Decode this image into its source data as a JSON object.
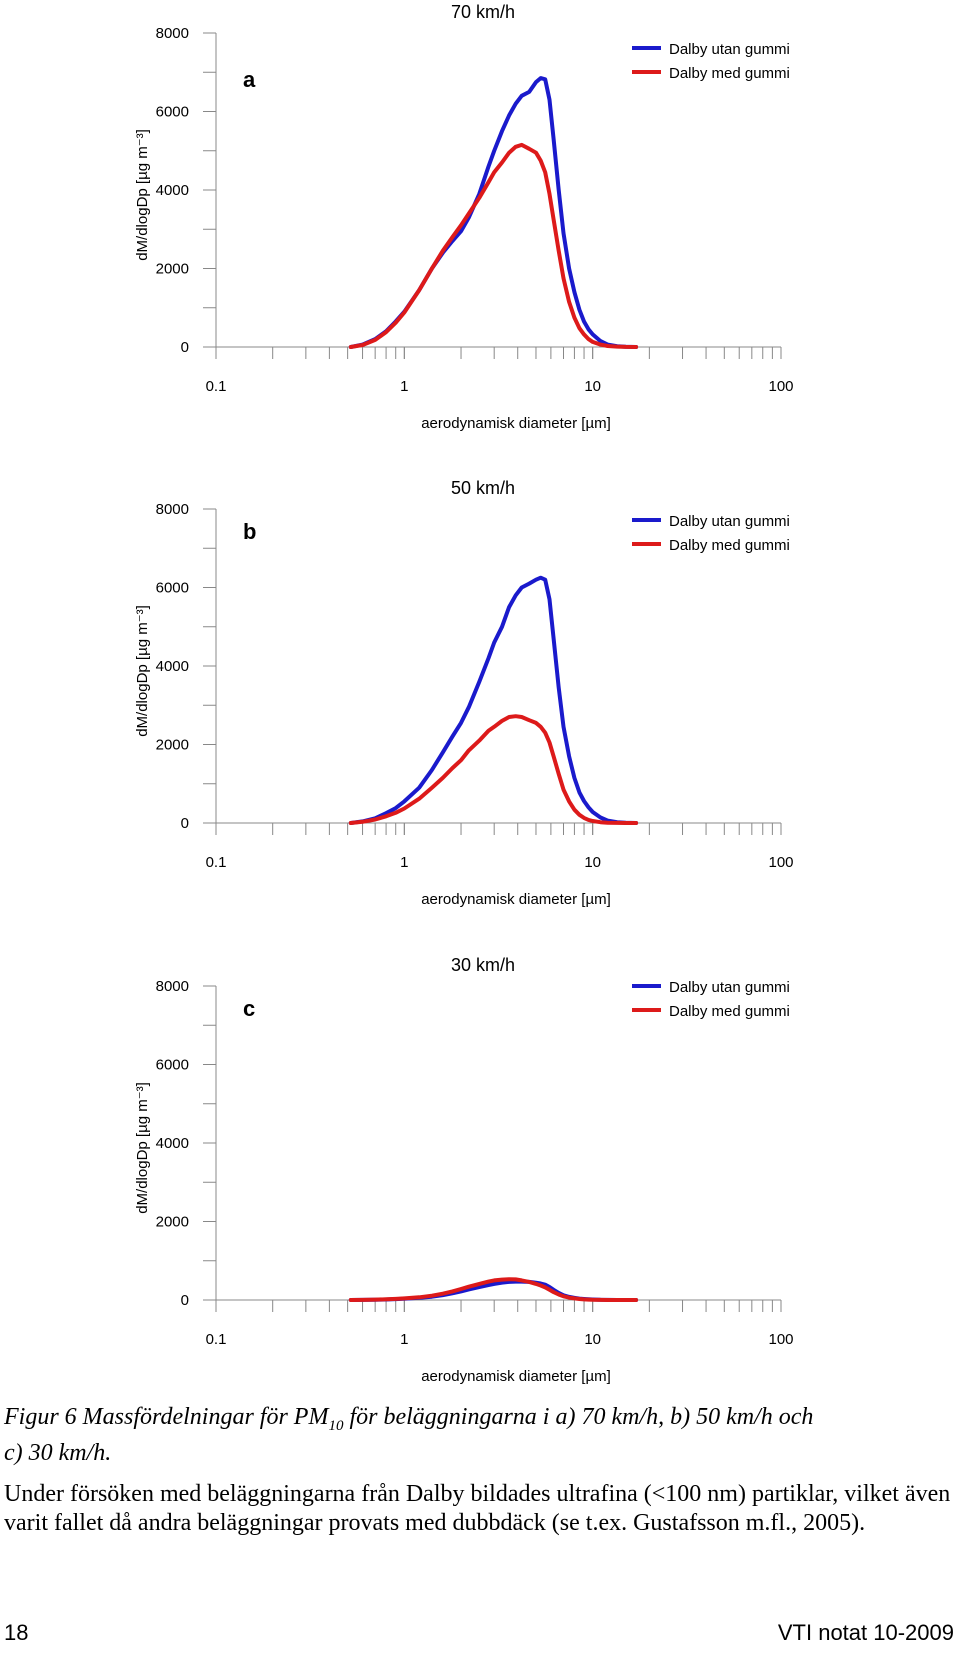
{
  "chart_data": [
    {
      "type": "line",
      "panel_letter": "a",
      "title": "70 km/h",
      "xlabel": "aerodynamisk diameter [µm]",
      "ylabel": "dM/dlogDp [µg m⁻³]",
      "x_scale": "log",
      "xlim": [
        0.1,
        100
      ],
      "ylim": [
        0,
        8000
      ],
      "xticks": [
        "0.1",
        "1",
        "10",
        "100"
      ],
      "yticks": [
        "0",
        "2000",
        "4000",
        "6000",
        "8000"
      ],
      "legend_position": "top-right",
      "series": [
        {
          "name": "Dalby utan gummi",
          "color": "#1a1acc",
          "x": [
            0.52,
            0.6,
            0.7,
            0.8,
            0.9,
            1.0,
            1.2,
            1.4,
            1.6,
            1.8,
            2.0,
            2.2,
            2.5,
            2.8,
            3.0,
            3.3,
            3.6,
            3.9,
            4.2,
            4.6,
            5.0,
            5.3,
            5.6,
            5.9,
            6.2,
            6.6,
            7.0,
            7.5,
            8.0,
            8.5,
            9.0,
            9.5,
            10.0,
            11.0,
            12.0,
            13.5,
            15.0,
            17.0
          ],
          "y": [
            0,
            60,
            200,
            400,
            650,
            900,
            1450,
            2000,
            2400,
            2700,
            2950,
            3300,
            3900,
            4600,
            5000,
            5500,
            5900,
            6200,
            6400,
            6500,
            6750,
            6850,
            6820,
            6300,
            5300,
            4000,
            2900,
            2000,
            1400,
            950,
            650,
            450,
            320,
            150,
            60,
            20,
            5,
            0
          ]
        },
        {
          "name": "Dalby med gummi",
          "color": "#dd1a1a",
          "x": [
            0.52,
            0.6,
            0.7,
            0.8,
            0.9,
            1.0,
            1.2,
            1.4,
            1.6,
            1.8,
            2.0,
            2.2,
            2.5,
            2.8,
            3.0,
            3.3,
            3.6,
            3.9,
            4.2,
            4.6,
            5.0,
            5.3,
            5.6,
            5.9,
            6.2,
            6.6,
            7.0,
            7.5,
            8.0,
            8.5,
            9.0,
            9.5,
            10.0,
            11.0,
            12.0,
            13.5,
            15.0,
            17.0
          ],
          "y": [
            0,
            50,
            180,
            380,
            620,
            880,
            1450,
            2000,
            2450,
            2800,
            3100,
            3400,
            3800,
            4200,
            4450,
            4700,
            4950,
            5100,
            5150,
            5050,
            4950,
            4750,
            4450,
            3900,
            3250,
            2450,
            1750,
            1150,
            750,
            480,
            320,
            200,
            130,
            60,
            25,
            10,
            3,
            0
          ]
        }
      ]
    },
    {
      "type": "line",
      "panel_letter": "b",
      "title": "50 km/h",
      "xlabel": "aerodynamisk diameter [µm]",
      "ylabel": "dM/dlogDp [µg m⁻³]",
      "x_scale": "log",
      "xlim": [
        0.1,
        100
      ],
      "ylim": [
        0,
        8000
      ],
      "xticks": [
        "0.1",
        "1",
        "10",
        "100"
      ],
      "yticks": [
        "0",
        "2000",
        "4000",
        "6000",
        "8000"
      ],
      "legend_position": "top-right",
      "series": [
        {
          "name": "Dalby utan gummi",
          "color": "#1a1acc",
          "x": [
            0.52,
            0.6,
            0.7,
            0.8,
            0.9,
            1.0,
            1.2,
            1.4,
            1.6,
            1.8,
            2.0,
            2.2,
            2.5,
            2.8,
            3.0,
            3.3,
            3.6,
            3.9,
            4.2,
            4.6,
            5.0,
            5.3,
            5.6,
            5.9,
            6.2,
            6.6,
            7.0,
            7.5,
            8.0,
            8.5,
            9.0,
            9.5,
            10.0,
            11.0,
            12.0,
            13.5,
            15.0,
            17.0
          ],
          "y": [
            0,
            40,
            120,
            250,
            380,
            550,
            900,
            1350,
            1800,
            2200,
            2550,
            2950,
            3600,
            4200,
            4600,
            5000,
            5500,
            5800,
            6000,
            6100,
            6200,
            6250,
            6200,
            5700,
            4700,
            3450,
            2450,
            1700,
            1150,
            780,
            560,
            400,
            280,
            140,
            60,
            20,
            5,
            0
          ]
        },
        {
          "name": "Dalby med gummi",
          "color": "#dd1a1a",
          "x": [
            0.52,
            0.6,
            0.7,
            0.8,
            0.9,
            1.0,
            1.2,
            1.4,
            1.6,
            1.8,
            2.0,
            2.2,
            2.5,
            2.8,
            3.0,
            3.3,
            3.6,
            3.9,
            4.2,
            4.6,
            5.0,
            5.3,
            5.6,
            5.9,
            6.2,
            6.6,
            7.0,
            7.5,
            8.0,
            8.5,
            9.0,
            9.5,
            10.0,
            11.0,
            12.0,
            13.5,
            15.0,
            17.0
          ],
          "y": [
            0,
            30,
            90,
            170,
            260,
            370,
            620,
            900,
            1150,
            1400,
            1600,
            1850,
            2100,
            2350,
            2450,
            2600,
            2700,
            2720,
            2700,
            2620,
            2550,
            2450,
            2300,
            2050,
            1700,
            1250,
            850,
            550,
            340,
            210,
            130,
            80,
            50,
            20,
            8,
            3,
            1,
            0
          ]
        }
      ]
    },
    {
      "type": "line",
      "panel_letter": "c",
      "title": "30 km/h",
      "xlabel": "aerodynamisk diameter [µm]",
      "ylabel": "dM/dlogDp [µg m⁻³]",
      "x_scale": "log",
      "xlim": [
        0.1,
        100
      ],
      "ylim": [
        0,
        8000
      ],
      "xticks": [
        "0.1",
        "1",
        "10",
        "100"
      ],
      "yticks": [
        "0",
        "2000",
        "4000",
        "6000",
        "8000"
      ],
      "legend_position": "top-right",
      "series": [
        {
          "name": "Dalby utan gummi",
          "color": "#1a1acc",
          "x": [
            0.52,
            0.6,
            0.7,
            0.8,
            0.9,
            1.0,
            1.2,
            1.4,
            1.6,
            1.8,
            2.0,
            2.2,
            2.5,
            2.8,
            3.0,
            3.3,
            3.6,
            3.9,
            4.2,
            4.6,
            5.0,
            5.3,
            5.6,
            5.9,
            6.2,
            6.6,
            7.0,
            7.5,
            8.0,
            8.5,
            9.0,
            9.5,
            10.0,
            11.0,
            12.0,
            13.5,
            15.0,
            17.0
          ],
          "y": [
            0,
            3,
            8,
            14,
            22,
            32,
            55,
            85,
            125,
            170,
            220,
            270,
            330,
            380,
            410,
            440,
            460,
            470,
            470,
            460,
            440,
            420,
            390,
            330,
            260,
            180,
            120,
            80,
            55,
            35,
            25,
            18,
            12,
            6,
            3,
            1,
            0,
            0
          ]
        },
        {
          "name": "Dalby med gummi",
          "color": "#dd1a1a",
          "x": [
            0.52,
            0.6,
            0.7,
            0.8,
            0.9,
            1.0,
            1.2,
            1.4,
            1.6,
            1.8,
            2.0,
            2.2,
            2.5,
            2.8,
            3.0,
            3.3,
            3.6,
            3.9,
            4.2,
            4.6,
            5.0,
            5.3,
            5.6,
            5.9,
            6.2,
            6.6,
            7.0,
            7.5,
            8.0,
            8.5,
            9.0,
            9.5,
            10.0,
            11.0,
            12.0,
            13.5,
            15.0,
            17.0
          ],
          "y": [
            0,
            3,
            9,
            17,
            27,
            40,
            70,
            110,
            160,
            220,
            280,
            340,
            410,
            470,
            500,
            520,
            530,
            525,
            500,
            460,
            410,
            370,
            320,
            260,
            200,
            140,
            95,
            60,
            40,
            25,
            15,
            10,
            6,
            3,
            1,
            0,
            0,
            0
          ]
        }
      ]
    }
  ],
  "caption": {
    "line1_before_sub": "Figur 6  Massfördelningar för PM",
    "sub": "10",
    "line1_after_sub": " för beläggningarna i a) 70 km/h, b) 50 km/h och",
    "line2": "c) 30 km/h."
  },
  "paragraph": "Under försöken med beläggningarna från Dalby bildades ultrafina (<100 nm) partiklar, vilket även varit fallet då andra beläggningar provats med dubbdäck (se t.ex. Gustafsson m.fl., 2005).",
  "footer": {
    "page_number": "18",
    "publication": "VTI notat 10-2009"
  }
}
